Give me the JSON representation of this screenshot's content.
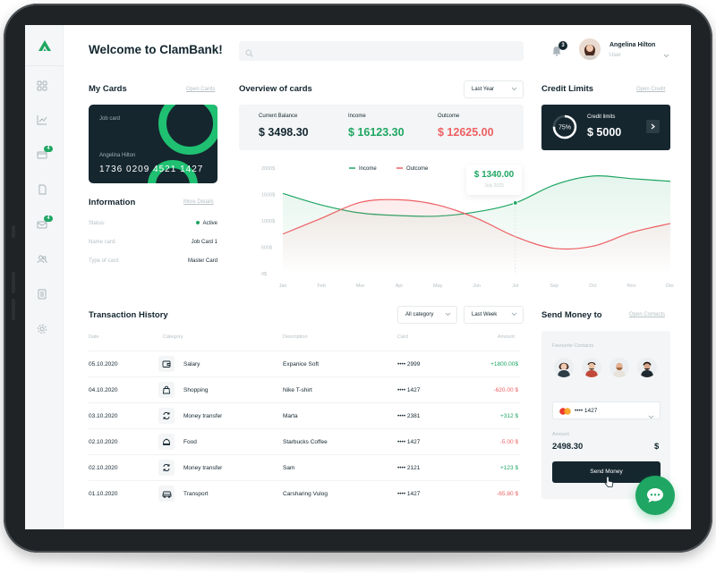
{
  "header": {
    "title": "Welcome to ClamBank!",
    "search_placeholder": "",
    "notification_count": "3",
    "user_name": "Angelina Hilton",
    "user_role": "User"
  },
  "sidebar": {
    "items": [
      {
        "name": "dashboard-icon",
        "badge": ""
      },
      {
        "name": "analytics-icon",
        "badge": ""
      },
      {
        "name": "wallet-icon",
        "badge": "4"
      },
      {
        "name": "document-icon",
        "badge": ""
      },
      {
        "name": "mail-icon",
        "badge": "4"
      },
      {
        "name": "users-icon",
        "badge": ""
      },
      {
        "name": "calendar-icon",
        "badge": ""
      },
      {
        "name": "settings-icon",
        "badge": ""
      }
    ]
  },
  "my_cards": {
    "title": "My Cards",
    "link": "Open Cards",
    "card_name": "Job card",
    "card_holder": "Angelina Hilton",
    "card_number": "1736 0209 4521 1427"
  },
  "information": {
    "title": "Information",
    "link": "More Details",
    "rows": [
      {
        "label": "Status:",
        "value": "Active"
      },
      {
        "label": "Name card:",
        "value": "Job Card 1"
      },
      {
        "label": "Type of card:",
        "value": "Master Card"
      }
    ]
  },
  "overview": {
    "title": "Overview of cards",
    "period": "Last Year",
    "items": [
      {
        "label": "Current Balance",
        "value": "$ 3498.30",
        "color": "#13262f"
      },
      {
        "label": "Income",
        "value": "$ 16123.30",
        "color": "#1fa663"
      },
      {
        "label": "Outcome",
        "value": "$ 12625.00",
        "color": "#ee5f63"
      }
    ]
  },
  "credit_limits": {
    "title": "Credit Limits",
    "link": "Open Credit",
    "percent": "75%",
    "percent_value": 0.75,
    "label": "Credit limits",
    "value": "$ 5000"
  },
  "chart_data": {
    "type": "line",
    "title": "",
    "x": [
      "Jan",
      "Feb",
      "Mar",
      "Apr",
      "May",
      "Jun",
      "Jul",
      "Sep",
      "Oct",
      "Nov",
      "Dec"
    ],
    "y_ticks": [
      "2000$",
      "1500$",
      "1000$",
      "500$",
      "0$"
    ],
    "ylim": [
      0,
      2000
    ],
    "series": [
      {
        "name": "Income",
        "color": "#1fa663",
        "values": [
          1520,
          1300,
          1150,
          1100,
          1090,
          1170,
          1340,
          1680,
          1850,
          1800,
          1750
        ]
      },
      {
        "name": "Outcome",
        "color": "#ee5f63",
        "values": [
          750,
          1050,
          1350,
          1400,
          1300,
          1050,
          700,
          480,
          520,
          780,
          950
        ]
      }
    ],
    "tooltip": {
      "value": "$ 1340.00",
      "label": "July 2020"
    },
    "legend": "top-center",
    "grid": false
  },
  "transactions": {
    "title": "Transaction History",
    "filter_category": "All category",
    "filter_period": "Last Week",
    "columns": [
      "Date",
      "Category",
      "Description",
      "Card",
      "Amount"
    ],
    "rows": [
      {
        "date": "05.10.2020",
        "icon": "wallet-icon",
        "category": "Salary",
        "description": "Expanice Soft",
        "card": "•••• 2999",
        "amount": "+1800.00$",
        "color": "#1fa663"
      },
      {
        "date": "04.10.2020",
        "icon": "shopping-bag-icon",
        "category": "Shopping",
        "description": "Nike T-shirt",
        "card": "•••• 1427",
        "amount": "-620.00 $",
        "color": "#ee5f63"
      },
      {
        "date": "03.10.2020",
        "icon": "transfer-icon",
        "category": "Money transfer",
        "description": "Marta",
        "card": "•••• 2381",
        "amount": "+312 $",
        "color": "#1fa663"
      },
      {
        "date": "02.10.2020",
        "icon": "food-icon",
        "category": "Food",
        "description": "Starbucks Coffee",
        "card": "•••• 1427",
        "amount": "-5.00 $",
        "color": "#ee5f63"
      },
      {
        "date": "02.10.2020",
        "icon": "transfer-icon",
        "category": "Money transfer",
        "description": "Sam",
        "card": "•••• 2121",
        "amount": "+123 $",
        "color": "#1fa663"
      },
      {
        "date": "01.10.2020",
        "icon": "car-icon",
        "category": "Transport",
        "description": "Carsharing Vulog",
        "card": "•••• 1427",
        "amount": "-65.80 $",
        "color": "#ee5f63"
      }
    ]
  },
  "send_money": {
    "title": "Send Money to",
    "link": "Open Contacts",
    "favourite_label": "Favourite Contacts",
    "card": "•••• 1427",
    "amount_label": "Amount",
    "amount": "2498.30",
    "currency": "$",
    "button": "Send Money"
  }
}
